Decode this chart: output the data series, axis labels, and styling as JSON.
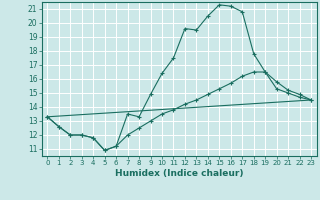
{
  "xlabel": "Humidex (Indice chaleur)",
  "xlim": [
    -0.5,
    23.5
  ],
  "ylim": [
    10.5,
    21.5
  ],
  "yticks": [
    11,
    12,
    13,
    14,
    15,
    16,
    17,
    18,
    19,
    20,
    21
  ],
  "xticks": [
    0,
    1,
    2,
    3,
    4,
    5,
    6,
    7,
    8,
    9,
    10,
    11,
    12,
    13,
    14,
    15,
    16,
    17,
    18,
    19,
    20,
    21,
    22,
    23
  ],
  "background_color": "#cce8e8",
  "grid_color": "#ffffff",
  "line_color": "#1a6e60",
  "lines": [
    {
      "x": [
        0,
        1,
        2,
        3,
        4,
        5,
        6,
        7,
        8,
        9,
        10,
        11,
        12,
        13,
        14,
        15,
        16,
        17,
        18,
        19,
        20,
        21,
        22,
        23
      ],
      "y": [
        13.3,
        12.6,
        12.0,
        12.0,
        11.8,
        10.9,
        11.2,
        13.5,
        13.3,
        14.9,
        16.4,
        17.5,
        19.6,
        19.5,
        20.5,
        21.3,
        21.2,
        20.8,
        17.8,
        16.5,
        15.3,
        15.0,
        14.7,
        14.5
      ],
      "marker": true
    },
    {
      "x": [
        0,
        1,
        2,
        3,
        4,
        5,
        6,
        7,
        8,
        9,
        10,
        11,
        12,
        13,
        14,
        15,
        16,
        17,
        18,
        19,
        20,
        21,
        22,
        23
      ],
      "y": [
        13.3,
        12.6,
        12.0,
        12.0,
        11.8,
        10.9,
        11.2,
        12.0,
        12.5,
        13.0,
        13.5,
        13.8,
        14.2,
        14.5,
        14.9,
        15.3,
        15.7,
        16.2,
        16.5,
        16.5,
        15.8,
        15.2,
        14.9,
        14.5
      ],
      "marker": true
    },
    {
      "x": [
        0,
        23
      ],
      "y": [
        13.3,
        14.5
      ],
      "marker": false
    }
  ]
}
